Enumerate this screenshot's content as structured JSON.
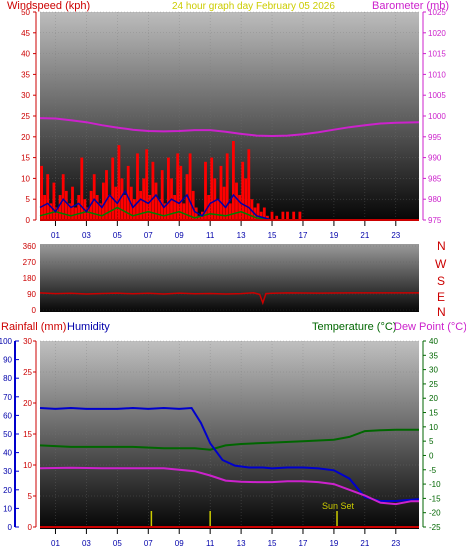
{
  "header": {
    "windspeed_label": "Windspeed (kph)",
    "title": "24 hour graph day   February 05 2026",
    "barometer_label": "Barometer (mb)"
  },
  "compass": [
    "N",
    "W",
    "S",
    "E",
    "N"
  ],
  "lower_header": {
    "rainfall_label": "Rainfall (mm)",
    "humidity_label": "Humidity",
    "temperature_label": "Temperature (°C)",
    "dewpoint_label": "Dew Point (°C)"
  },
  "annotations": {
    "sunset": "Sun Set"
  },
  "colors": {
    "windspeed": "#ff0000",
    "gust_bars": "#ff0000",
    "wind_avg": "#0000aa",
    "wind_min": "#008000",
    "barometer": "#cc22cc",
    "direction": "#cc0000",
    "humidity": "#0000cc",
    "temperature": "#006600",
    "dewpoint": "#cc22cc",
    "rainfall": "#cc0000",
    "sunset": "#cccc00",
    "label_red": "#cc0000",
    "label_blue": "#0000aa",
    "label_green": "#006600",
    "label_magenta": "#cc22cc",
    "label_yellow": "#cccc00"
  },
  "chart_data": [
    {
      "type": "bar",
      "name": "Windspeed and Barometer",
      "x_ticks": [
        "01",
        "03",
        "05",
        "07",
        "09",
        "11",
        "13",
        "15",
        "17",
        "19",
        "21",
        "23"
      ],
      "xlim": [
        0,
        24.5
      ],
      "y_left": {
        "label": "Windspeed (kph)",
        "ylim": [
          0,
          50
        ],
        "ticks": [
          0,
          5,
          10,
          15,
          20,
          25,
          30,
          35,
          40,
          45,
          50
        ]
      },
      "y_right": {
        "label": "Barometer (mb)",
        "ylim": [
          975,
          1025
        ],
        "ticks": [
          975,
          980,
          985,
          990,
          995,
          1000,
          1005,
          1010,
          1015,
          1020,
          1025
        ]
      },
      "gust_bars": [
        [
          0.1,
          13
        ],
        [
          0.3,
          6
        ],
        [
          0.5,
          11
        ],
        [
          0.7,
          4
        ],
        [
          0.9,
          9
        ],
        [
          1.1,
          3
        ],
        [
          1.3,
          6
        ],
        [
          1.5,
          11
        ],
        [
          1.7,
          7
        ],
        [
          1.9,
          4
        ],
        [
          2.1,
          8
        ],
        [
          2.3,
          3
        ],
        [
          2.5,
          6
        ],
        [
          2.7,
          15
        ],
        [
          2.9,
          5
        ],
        [
          3.1,
          3
        ],
        [
          3.3,
          7
        ],
        [
          3.5,
          11
        ],
        [
          3.7,
          6
        ],
        [
          3.9,
          4
        ],
        [
          4.1,
          9
        ],
        [
          4.3,
          12
        ],
        [
          4.5,
          6
        ],
        [
          4.7,
          15
        ],
        [
          4.9,
          8
        ],
        [
          5.1,
          18
        ],
        [
          5.3,
          10
        ],
        [
          5.5,
          6
        ],
        [
          5.7,
          13
        ],
        [
          5.9,
          8
        ],
        [
          6.1,
          5
        ],
        [
          6.3,
          16
        ],
        [
          6.5,
          7
        ],
        [
          6.7,
          10
        ],
        [
          6.9,
          17
        ],
        [
          7.1,
          6
        ],
        [
          7.3,
          14
        ],
        [
          7.5,
          9
        ],
        [
          7.7,
          5
        ],
        [
          7.9,
          12
        ],
        [
          8.1,
          4
        ],
        [
          8.3,
          15
        ],
        [
          8.5,
          10
        ],
        [
          8.7,
          6
        ],
        [
          8.9,
          16
        ],
        [
          9.1,
          13
        ],
        [
          9.3,
          4
        ],
        [
          9.5,
          11
        ],
        [
          9.7,
          16
        ],
        [
          9.9,
          7
        ],
        [
          10.1,
          3
        ],
        [
          10.3,
          1
        ],
        [
          10.5,
          2
        ],
        [
          10.7,
          14
        ],
        [
          10.9,
          6
        ],
        [
          11.1,
          15
        ],
        [
          11.3,
          10
        ],
        [
          11.5,
          5
        ],
        [
          11.7,
          13
        ],
        [
          11.9,
          8
        ],
        [
          12.1,
          16
        ],
        [
          12.3,
          4
        ],
        [
          12.5,
          19
        ],
        [
          12.7,
          9
        ],
        [
          12.9,
          6
        ],
        [
          13.1,
          14
        ],
        [
          13.3,
          10
        ],
        [
          13.5,
          17
        ],
        [
          13.7,
          5
        ],
        [
          13.9,
          3
        ],
        [
          14.1,
          4
        ],
        [
          14.3,
          2
        ],
        [
          14.5,
          3
        ],
        [
          14.7,
          1
        ],
        [
          15.0,
          2
        ],
        [
          15.3,
          1
        ],
        [
          15.7,
          2
        ],
        [
          16.0,
          2
        ],
        [
          16.4,
          2
        ],
        [
          16.8,
          2
        ]
      ],
      "wind_avg": [
        [
          0,
          3
        ],
        [
          0.5,
          4
        ],
        [
          1,
          2
        ],
        [
          1.5,
          5
        ],
        [
          2,
          3
        ],
        [
          2.5,
          4
        ],
        [
          3,
          2
        ],
        [
          3.5,
          5
        ],
        [
          4,
          3
        ],
        [
          4.5,
          6
        ],
        [
          5,
          4
        ],
        [
          5.5,
          7
        ],
        [
          6,
          3
        ],
        [
          6.5,
          5
        ],
        [
          7,
          4
        ],
        [
          7.5,
          6
        ],
        [
          8,
          3
        ],
        [
          8.5,
          5
        ],
        [
          9,
          4
        ],
        [
          9.5,
          6
        ],
        [
          10,
          2
        ],
        [
          10.5,
          1
        ],
        [
          11,
          4
        ],
        [
          11.5,
          5
        ],
        [
          12,
          3
        ],
        [
          12.5,
          6
        ],
        [
          13,
          4
        ],
        [
          13.5,
          3
        ],
        [
          14,
          1
        ],
        [
          14.5,
          0.5
        ],
        [
          15,
          0
        ]
      ],
      "wind_min": [
        [
          0,
          1
        ],
        [
          1,
          2
        ],
        [
          2,
          1
        ],
        [
          3,
          2
        ],
        [
          4,
          1
        ],
        [
          5,
          3
        ],
        [
          6,
          1
        ],
        [
          7,
          2
        ],
        [
          8,
          1
        ],
        [
          9,
          2
        ],
        [
          10,
          0.5
        ],
        [
          11,
          1.5
        ],
        [
          12,
          1
        ],
        [
          13,
          2
        ],
        [
          14,
          0.5
        ],
        [
          15,
          0
        ]
      ],
      "barometer": [
        [
          0,
          999.5
        ],
        [
          1,
          999.4
        ],
        [
          2,
          999.0
        ],
        [
          3,
          998.5
        ],
        [
          4,
          997.8
        ],
        [
          5,
          997.2
        ],
        [
          6,
          996.7
        ],
        [
          7,
          996.4
        ],
        [
          8,
          996.3
        ],
        [
          9,
          996.4
        ],
        [
          10,
          996.6
        ],
        [
          11,
          996.6
        ],
        [
          12,
          996.2
        ],
        [
          13,
          995.7
        ],
        [
          14,
          995.3
        ],
        [
          15,
          995.2
        ],
        [
          16,
          995.3
        ],
        [
          17,
          995.6
        ],
        [
          18,
          996.1
        ],
        [
          19,
          996.7
        ],
        [
          20,
          997.3
        ],
        [
          21,
          997.8
        ],
        [
          22,
          998.2
        ],
        [
          23,
          998.4
        ],
        [
          24.5,
          998.5
        ]
      ]
    },
    {
      "type": "line",
      "name": "Wind direction",
      "ylim": [
        0,
        360
      ],
      "ticks": [
        0,
        90,
        180,
        270,
        360
      ],
      "xlim": [
        0,
        24.5
      ],
      "direction": [
        [
          0,
          96
        ],
        [
          1,
          92
        ],
        [
          2,
          94
        ],
        [
          3,
          90
        ],
        [
          4,
          93
        ],
        [
          5,
          95
        ],
        [
          6,
          91
        ],
        [
          7,
          94
        ],
        [
          8,
          90
        ],
        [
          9,
          95
        ],
        [
          10,
          91
        ],
        [
          11,
          93
        ],
        [
          12,
          90
        ],
        [
          13,
          92
        ],
        [
          13.8,
          97
        ],
        [
          14.2,
          88
        ],
        [
          14.4,
          40
        ],
        [
          14.6,
          92
        ],
        [
          15,
          94
        ],
        [
          16,
          96
        ],
        [
          18,
          95
        ],
        [
          20,
          96
        ],
        [
          22,
          96
        ],
        [
          24.5,
          96
        ]
      ]
    },
    {
      "type": "line",
      "name": "Rainfall, Humidity, Temperature, Dew Point",
      "x_ticks": [
        "01",
        "03",
        "05",
        "07",
        "09",
        "11",
        "13",
        "15",
        "17",
        "19",
        "21",
        "23"
      ],
      "xlim": [
        0,
        24.5
      ],
      "y_humidity": {
        "label": "Humidity",
        "ylim": [
          0,
          100
        ],
        "ticks": [
          0,
          10,
          20,
          30,
          40,
          50,
          60,
          70,
          80,
          90,
          100
        ]
      },
      "y_rainfall": {
        "label": "Rainfall (mm)",
        "ylim": [
          0,
          30
        ],
        "ticks": [
          0,
          5,
          10,
          15,
          20,
          25,
          30
        ]
      },
      "y_temperature": {
        "label": "Temperature (°C)",
        "ylim": [
          -25,
          40
        ],
        "ticks": [
          -25,
          -20,
          -15,
          -10,
          -5,
          0,
          5,
          10,
          15,
          20,
          25,
          30,
          35,
          40
        ]
      },
      "humidity": [
        [
          0,
          64
        ],
        [
          1,
          63.5
        ],
        [
          2,
          64
        ],
        [
          3,
          63.5
        ],
        [
          4,
          63.5
        ],
        [
          5,
          63.5
        ],
        [
          6,
          64
        ],
        [
          7,
          63.5
        ],
        [
          8,
          64
        ],
        [
          9,
          63.5
        ],
        [
          9.8,
          64
        ],
        [
          10.4,
          56
        ],
        [
          11,
          45
        ],
        [
          11.8,
          36
        ],
        [
          12.6,
          33
        ],
        [
          13.5,
          32
        ],
        [
          14.4,
          32
        ],
        [
          15,
          31.5
        ],
        [
          16,
          32
        ],
        [
          17,
          32
        ],
        [
          18,
          31.5
        ],
        [
          19,
          30.5
        ],
        [
          20,
          26
        ],
        [
          21,
          16
        ],
        [
          22,
          14
        ],
        [
          23,
          14
        ],
        [
          24.5,
          15
        ]
      ],
      "temperature": [
        [
          0,
          3.5
        ],
        [
          2,
          3
        ],
        [
          4,
          3
        ],
        [
          6,
          3
        ],
        [
          8,
          2.5
        ],
        [
          10,
          2.5
        ],
        [
          11,
          2
        ],
        [
          12,
          3.5
        ],
        [
          13,
          4
        ],
        [
          15,
          4.5
        ],
        [
          17,
          5
        ],
        [
          19,
          5.5
        ],
        [
          20,
          6.5
        ],
        [
          21,
          8.5
        ],
        [
          22,
          8.8
        ],
        [
          23,
          9
        ],
        [
          24.5,
          9
        ]
      ],
      "dewpoint": [
        [
          0,
          -4.5
        ],
        [
          2,
          -4.3
        ],
        [
          4,
          -4.5
        ],
        [
          6,
          -4.5
        ],
        [
          8,
          -4.5
        ],
        [
          9,
          -5
        ],
        [
          10,
          -5.5
        ],
        [
          11,
          -7
        ],
        [
          12,
          -8.8
        ],
        [
          13,
          -9.2
        ],
        [
          14,
          -9.3
        ],
        [
          15,
          -9.3
        ],
        [
          16,
          -9
        ],
        [
          17,
          -9
        ],
        [
          18,
          -9.3
        ],
        [
          19,
          -10
        ],
        [
          20,
          -12
        ],
        [
          21,
          -14
        ],
        [
          22,
          -16.5
        ],
        [
          23,
          -17
        ],
        [
          24,
          -16
        ],
        [
          24.5,
          -16
        ]
      ],
      "rainfall": [
        [
          0,
          0
        ],
        [
          24.5,
          0
        ]
      ],
      "sunrise_marks": [
        7.2,
        11.0
      ],
      "sunset_mark": 19.2
    }
  ]
}
